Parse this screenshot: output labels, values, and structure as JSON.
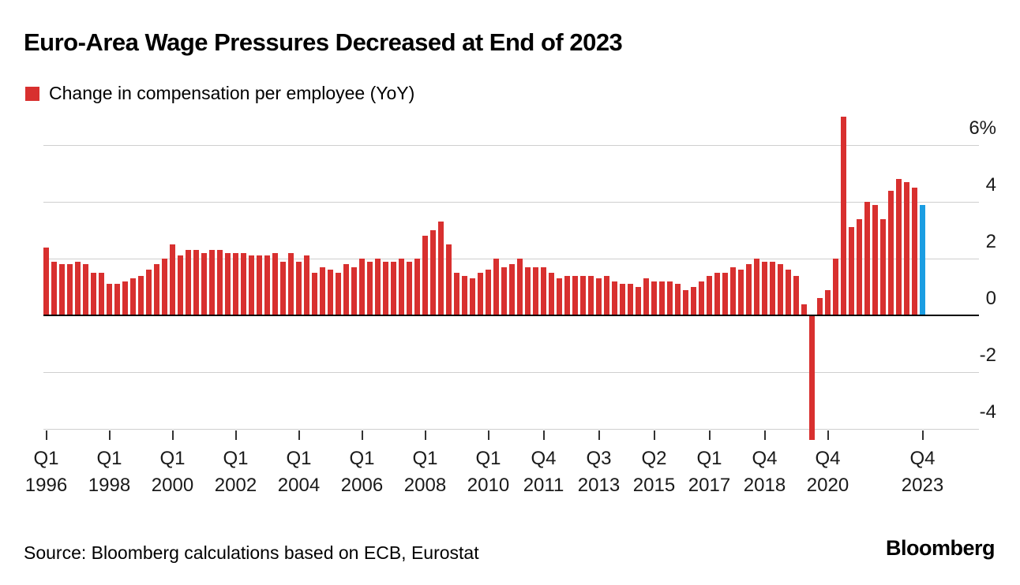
{
  "title": "Euro-Area Wage Pressures Decreased at End of 2023",
  "legend": {
    "label": "Change in compensation per employee (YoY)",
    "swatch_color": "#d8302f"
  },
  "source": "Source: Bloomberg calculations based on ECB, Eurostat",
  "brand": "Bloomberg",
  "chart_data": {
    "type": "bar",
    "series_name": "Change in compensation per employee (YoY)",
    "unit": "%",
    "frequency": "quarterly",
    "start_period": "1996 Q1",
    "end_period": "2023 Q4",
    "values": [
      2.4,
      1.9,
      1.8,
      1.8,
      1.9,
      1.8,
      1.5,
      1.5,
      1.1,
      1.1,
      1.2,
      1.3,
      1.4,
      1.6,
      1.8,
      2.0,
      2.5,
      2.1,
      2.3,
      2.3,
      2.2,
      2.3,
      2.3,
      2.2,
      2.2,
      2.2,
      2.1,
      2.1,
      2.1,
      2.2,
      1.9,
      2.2,
      1.9,
      2.1,
      1.5,
      1.7,
      1.6,
      1.5,
      1.8,
      1.7,
      2.0,
      1.9,
      2.0,
      1.9,
      1.9,
      2.0,
      1.9,
      2.0,
      2.8,
      3.0,
      3.3,
      2.5,
      1.5,
      1.4,
      1.3,
      1.5,
      1.6,
      2.0,
      1.7,
      1.8,
      2.0,
      1.7,
      1.7,
      1.7,
      1.5,
      1.3,
      1.4,
      1.4,
      1.4,
      1.4,
      1.3,
      1.4,
      1.2,
      1.1,
      1.1,
      1.0,
      1.3,
      1.2,
      1.2,
      1.2,
      1.1,
      0.9,
      1.0,
      1.2,
      1.4,
      1.5,
      1.5,
      1.7,
      1.6,
      1.8,
      2.0,
      1.9,
      1.9,
      1.8,
      1.6,
      1.4,
      0.4,
      -4.4,
      0.6,
      0.9,
      2.0,
      7.0,
      3.1,
      3.4,
      4.0,
      3.9,
      3.4,
      4.4,
      4.8,
      4.7,
      4.5,
      3.9
    ],
    "highlight_last": true,
    "bar_color": "#d8302f",
    "highlight_color": "#1b9de2",
    "y_axis": {
      "ticks": [
        6,
        4,
        2,
        0,
        -2,
        -4
      ],
      "tick_labels": [
        "6%",
        "4",
        "2",
        "0",
        "-2",
        "-4"
      ],
      "range": [
        -5,
        7
      ],
      "label_side": "right"
    },
    "x_ticks": [
      {
        "index": 0,
        "quarter": "Q1",
        "year": "1996"
      },
      {
        "index": 8,
        "quarter": "Q1",
        "year": "1998"
      },
      {
        "index": 16,
        "quarter": "Q1",
        "year": "2000"
      },
      {
        "index": 24,
        "quarter": "Q1",
        "year": "2002"
      },
      {
        "index": 32,
        "quarter": "Q1",
        "year": "2004"
      },
      {
        "index": 40,
        "quarter": "Q1",
        "year": "2006"
      },
      {
        "index": 48,
        "quarter": "Q1",
        "year": "2008"
      },
      {
        "index": 56,
        "quarter": "Q1",
        "year": "2010"
      },
      {
        "index": 63,
        "quarter": "Q4",
        "year": "2011"
      },
      {
        "index": 70,
        "quarter": "Q3",
        "year": "2013"
      },
      {
        "index": 77,
        "quarter": "Q2",
        "year": "2015"
      },
      {
        "index": 84,
        "quarter": "Q1",
        "year": "2017"
      },
      {
        "index": 91,
        "quarter": "Q4",
        "year": "2018"
      },
      {
        "index": 99,
        "quarter": "Q4",
        "year": "2020"
      },
      {
        "index": 111,
        "quarter": "Q4",
        "year": "2023"
      }
    ],
    "grid": true,
    "legend_position": "top-left"
  }
}
